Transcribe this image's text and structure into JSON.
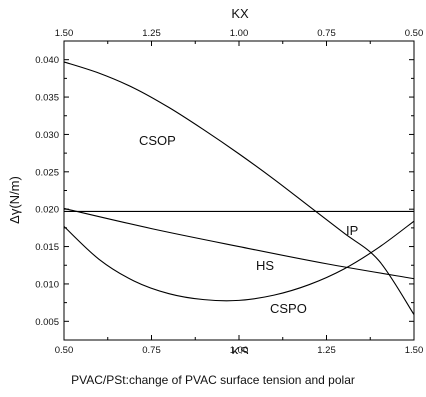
{
  "caption": "PVAC/PSt:change of PVAC surface tension and polar",
  "chart_data": {
    "type": "line",
    "xlabel": "KS",
    "x2label": "KX",
    "ylabel": "Δγ(N/m)",
    "xlim": [
      0.5,
      1.5
    ],
    "x2lim": [
      1.5,
      0.5
    ],
    "ylim": [
      0.0025,
      0.0425
    ],
    "x_ticks": [
      "0.50",
      "0.75",
      "1.00",
      "1.25",
      "1.50"
    ],
    "x2_ticks": [
      "1.50",
      "1.25",
      "1.00",
      "0.75",
      "0.50"
    ],
    "y_ticks": [
      "0.005",
      "0.010",
      "0.015",
      "0.020",
      "0.025",
      "0.030",
      "0.035",
      "0.040"
    ],
    "grid": false,
    "series": [
      {
        "name": "CSOP",
        "x": [
          0.5,
          0.6,
          0.7,
          0.8,
          0.9,
          1.0,
          1.1,
          1.2,
          1.3,
          1.4,
          1.5
        ],
        "y": [
          0.0397,
          0.0382,
          0.0362,
          0.0336,
          0.0306,
          0.0274,
          0.024,
          0.0204,
          0.0168,
          0.0131,
          0.0059
        ]
      },
      {
        "name": "IP",
        "x": [
          0.5,
          1.5
        ],
        "y": [
          0.0197,
          0.0197
        ]
      },
      {
        "name": "HS",
        "x": [
          0.5,
          0.75,
          1.0,
          1.25,
          1.5
        ],
        "y": [
          0.0201,
          0.0174,
          0.015,
          0.0127,
          0.0107
        ]
      },
      {
        "name": "CSPO",
        "x": [
          0.5,
          0.6,
          0.7,
          0.8,
          0.9,
          1.0,
          1.1,
          1.2,
          1.3,
          1.4,
          1.5
        ],
        "y": [
          0.0177,
          0.0133,
          0.0104,
          0.0087,
          0.0079,
          0.0078,
          0.0085,
          0.0099,
          0.012,
          0.0149,
          0.0184
        ]
      }
    ]
  }
}
